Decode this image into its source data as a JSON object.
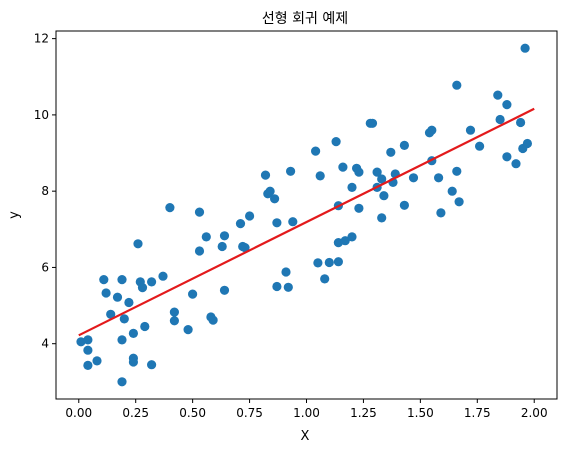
{
  "chart_data": {
    "type": "scatter",
    "title": "선형 회귀 예제",
    "xlabel": "X",
    "ylabel": "y",
    "xlim": [
      -0.1,
      2.1
    ],
    "ylim": [
      2.55,
      12.2
    ],
    "xticks": [
      0.0,
      0.25,
      0.5,
      0.75,
      1.0,
      1.25,
      1.5,
      1.75,
      2.0
    ],
    "xtick_labels": [
      "0.00",
      "0.25",
      "0.50",
      "0.75",
      "1.00",
      "1.25",
      "1.50",
      "1.75",
      "2.00"
    ],
    "yticks": [
      4,
      6,
      8,
      10,
      12
    ],
    "ytick_labels": [
      "4",
      "6",
      "8",
      "10",
      "12"
    ],
    "grid": false,
    "point_color": "#1f77b4",
    "line_color": "#e31a1c",
    "points": [
      [
        0.01,
        4.05
      ],
      [
        0.04,
        4.1
      ],
      [
        0.04,
        3.83
      ],
      [
        0.04,
        3.43
      ],
      [
        0.08,
        3.55
      ],
      [
        0.11,
        5.68
      ],
      [
        0.12,
        5.33
      ],
      [
        0.14,
        4.77
      ],
      [
        0.17,
        5.22
      ],
      [
        0.19,
        5.68
      ],
      [
        0.19,
        4.1
      ],
      [
        0.19,
        3.0
      ],
      [
        0.2,
        4.65
      ],
      [
        0.22,
        5.08
      ],
      [
        0.24,
        4.27
      ],
      [
        0.24,
        3.62
      ],
      [
        0.24,
        3.52
      ],
      [
        0.26,
        6.62
      ],
      [
        0.27,
        5.62
      ],
      [
        0.28,
        5.47
      ],
      [
        0.29,
        4.45
      ],
      [
        0.32,
        3.45
      ],
      [
        0.32,
        5.62
      ],
      [
        0.37,
        5.77
      ],
      [
        0.4,
        7.57
      ],
      [
        0.42,
        4.83
      ],
      [
        0.42,
        4.6
      ],
      [
        0.48,
        4.37
      ],
      [
        0.5,
        5.3
      ],
      [
        0.53,
        7.45
      ],
      [
        0.53,
        6.43
      ],
      [
        0.56,
        6.8
      ],
      [
        0.58,
        4.7
      ],
      [
        0.59,
        4.62
      ],
      [
        0.63,
        6.55
      ],
      [
        0.64,
        6.83
      ],
      [
        0.64,
        5.4
      ],
      [
        0.71,
        7.15
      ],
      [
        0.72,
        6.55
      ],
      [
        0.73,
        6.52
      ],
      [
        0.75,
        7.35
      ],
      [
        0.82,
        8.42
      ],
      [
        0.83,
        7.93
      ],
      [
        0.84,
        8.0
      ],
      [
        0.86,
        7.8
      ],
      [
        0.87,
        5.5
      ],
      [
        0.87,
        7.17
      ],
      [
        0.91,
        5.88
      ],
      [
        0.92,
        5.48
      ],
      [
        0.93,
        8.52
      ],
      [
        0.94,
        7.2
      ],
      [
        1.04,
        9.05
      ],
      [
        1.05,
        6.12
      ],
      [
        1.06,
        8.4
      ],
      [
        1.08,
        5.7
      ],
      [
        1.1,
        6.13
      ],
      [
        1.13,
        9.3
      ],
      [
        1.14,
        6.15
      ],
      [
        1.14,
        7.62
      ],
      [
        1.14,
        6.65
      ],
      [
        1.16,
        8.63
      ],
      [
        1.17,
        6.7
      ],
      [
        1.2,
        6.8
      ],
      [
        1.2,
        8.1
      ],
      [
        1.22,
        8.6
      ],
      [
        1.23,
        7.55
      ],
      [
        1.23,
        8.5
      ],
      [
        1.28,
        9.78
      ],
      [
        1.29,
        9.78
      ],
      [
        1.31,
        8.1
      ],
      [
        1.31,
        8.5
      ],
      [
        1.33,
        7.3
      ],
      [
        1.33,
        8.32
      ],
      [
        1.34,
        7.88
      ],
      [
        1.37,
        9.02
      ],
      [
        1.38,
        8.23
      ],
      [
        1.39,
        8.45
      ],
      [
        1.43,
        9.2
      ],
      [
        1.43,
        7.63
      ],
      [
        1.47,
        8.35
      ],
      [
        1.54,
        9.53
      ],
      [
        1.55,
        9.6
      ],
      [
        1.55,
        8.8
      ],
      [
        1.58,
        8.35
      ],
      [
        1.59,
        7.43
      ],
      [
        1.64,
        8.0
      ],
      [
        1.66,
        8.52
      ],
      [
        1.66,
        10.78
      ],
      [
        1.67,
        7.72
      ],
      [
        1.72,
        9.6
      ],
      [
        1.76,
        9.18
      ],
      [
        1.84,
        10.52
      ],
      [
        1.85,
        9.88
      ],
      [
        1.88,
        8.9
      ],
      [
        1.88,
        10.27
      ],
      [
        1.92,
        8.72
      ],
      [
        1.94,
        9.8
      ],
      [
        1.95,
        9.12
      ],
      [
        1.96,
        11.75
      ],
      [
        1.97,
        9.25
      ]
    ],
    "regression_line": {
      "x": [
        0.0,
        2.0
      ],
      "y": [
        4.22,
        10.16
      ]
    }
  }
}
